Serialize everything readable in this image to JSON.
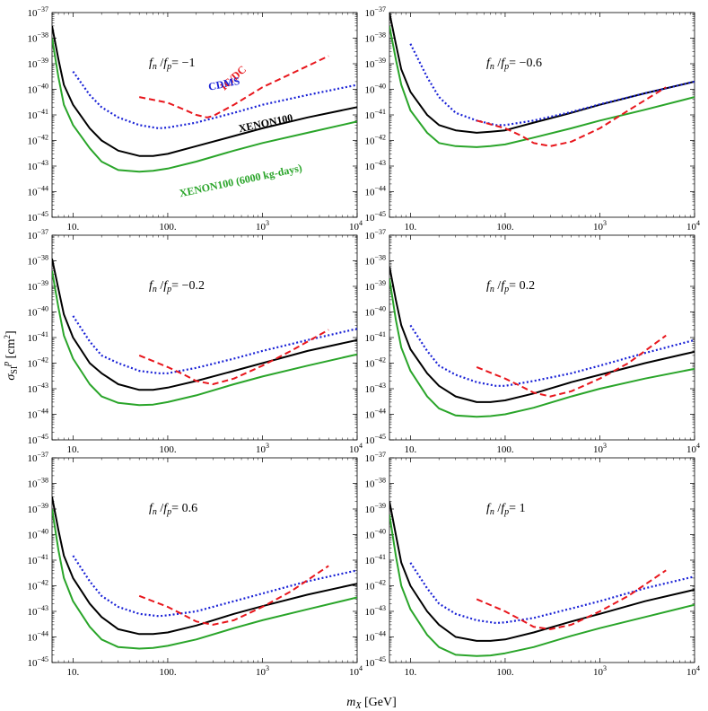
{
  "xlabel": "m_X [GeV]",
  "ylabel": "σ_SI^p [cm^2]",
  "colors": {
    "IC/DC": "#e8161c",
    "CDMS": "#1a22d6",
    "XENON100": "#000000",
    "XENON100 (6000 kg-days)": "#2aa52a"
  },
  "chart_data": [
    {
      "type": "line",
      "panel_label": "f_n / f_p = −1",
      "ratio": "−1",
      "xscale": "log",
      "yscale": "log",
      "xlim": [
        6,
        10000
      ],
      "ylim": [
        1e-45,
        1e-37
      ],
      "x_ticks": [
        "10.",
        "100.",
        "10^3",
        "10^4"
      ],
      "y_ticks": [
        "10^-45",
        "10^-44",
        "10^-43",
        "10^-42",
        "10^-41",
        "10^-40",
        "10^-39",
        "10^-38",
        "10^-37"
      ],
      "series": [
        {
          "name": "IC/DC",
          "label_shown": true,
          "x": [
            50,
            100,
            150,
            200,
            260,
            300,
            500,
            1000,
            2000,
            5000
          ],
          "y": [
            5e-41,
            3e-41,
            1.6e-41,
            1e-41,
            8e-42,
            9e-42,
            2.5e-41,
            1.2e-40,
            4e-40,
            2e-39
          ]
        },
        {
          "name": "CDMS",
          "label_shown": true,
          "x": [
            10,
            15,
            20,
            30,
            50,
            80,
            100,
            200,
            500,
            1000,
            3000,
            10000
          ],
          "y": [
            5e-40,
            6e-41,
            2e-41,
            8e-42,
            4e-42,
            3e-42,
            3.2e-42,
            5e-42,
            1.2e-41,
            2.5e-41,
            6e-41,
            1.5e-40
          ]
        },
        {
          "name": "XENON100",
          "label_shown": true,
          "x": [
            6,
            7,
            8,
            10,
            15,
            20,
            30,
            50,
            70,
            100,
            200,
            500,
            1000,
            3000,
            10000
          ],
          "y": [
            3e-38,
            1.5e-39,
            1.5e-40,
            2.5e-41,
            3e-42,
            1e-42,
            4e-43,
            2.5e-43,
            2.5e-43,
            3e-43,
            6e-43,
            1.5e-42,
            3e-42,
            8e-42,
            2e-41
          ]
        },
        {
          "name": "XENON100 (6000 kg-days)",
          "label_shown": true,
          "x": [
            6,
            7,
            8,
            10,
            15,
            20,
            30,
            50,
            70,
            100,
            200,
            500,
            1000,
            3000,
            10000
          ],
          "y": [
            1e-38,
            3e-40,
            2.5e-41,
            4e-42,
            5e-43,
            1.5e-43,
            7e-44,
            6e-44,
            6.5e-44,
            8e-44,
            1.5e-43,
            4e-43,
            8e-43,
            2e-42,
            5.5e-42
          ]
        }
      ]
    },
    {
      "type": "line",
      "panel_label": "f_n / f_p = −0.6",
      "ratio": "−0.6",
      "xscale": "log",
      "yscale": "log",
      "xlim": [
        6,
        10000
      ],
      "ylim": [
        1e-45,
        1e-37
      ],
      "x_ticks": [
        "10.",
        "100.",
        "10^3",
        "10^4"
      ],
      "y_ticks": [
        "10^-45",
        "10^-44",
        "10^-43",
        "10^-42",
        "10^-41",
        "10^-40",
        "10^-39",
        "10^-38",
        "10^-37"
      ],
      "series": [
        {
          "name": "IC/DC",
          "label_shown": false,
          "x": [
            50,
            100,
            150,
            200,
            300,
            500,
            1000,
            2000,
            5000
          ],
          "y": [
            6e-42,
            3e-42,
            1.5e-42,
            8e-43,
            6e-43,
            9e-43,
            3e-42,
            1.5e-41,
            1.2e-40
          ]
        },
        {
          "name": "CDMS",
          "label_shown": false,
          "x": [
            10,
            15,
            20,
            30,
            50,
            80,
            100,
            200,
            500,
            1000,
            3000,
            10000
          ],
          "y": [
            6e-39,
            3e-40,
            5e-41,
            1.2e-41,
            6e-42,
            4e-42,
            4e-42,
            6e-42,
            1.3e-41,
            2.6e-41,
            7e-41,
            2e-40
          ]
        },
        {
          "name": "XENON100",
          "label_shown": false,
          "x": [
            6,
            7,
            8,
            10,
            15,
            20,
            30,
            50,
            70,
            100,
            200,
            500,
            1000,
            3000,
            10000
          ],
          "y": [
            1e-37,
            6e-39,
            6e-40,
            8e-41,
            1e-41,
            4e-42,
            2.5e-42,
            2e-42,
            2.2e-42,
            2.5e-42,
            5e-42,
            1.2e-41,
            2.5e-41,
            7e-41,
            2e-40
          ]
        },
        {
          "name": "XENON100 (6000 kg-days)",
          "label_shown": false,
          "x": [
            6,
            7,
            8,
            10,
            15,
            20,
            30,
            50,
            70,
            100,
            200,
            500,
            1000,
            3000,
            10000
          ],
          "y": [
            3e-38,
            1.5e-39,
            1.5e-40,
            1.5e-41,
            2e-42,
            8e-43,
            6e-43,
            5.5e-43,
            6e-43,
            7e-43,
            1.3e-42,
            3e-42,
            6e-42,
            1.6e-41,
            5e-41
          ]
        }
      ]
    },
    {
      "type": "line",
      "panel_label": "f_n / f_p = −0.2",
      "ratio": "−0.2",
      "xscale": "log",
      "yscale": "log",
      "xlim": [
        6,
        10000
      ],
      "ylim": [
        1e-45,
        1e-37
      ],
      "x_ticks": [
        "10.",
        "100.",
        "10^3",
        "10^4"
      ],
      "y_ticks": [
        "10^-45",
        "10^-44",
        "10^-43",
        "10^-42",
        "10^-41",
        "10^-40",
        "10^-39",
        "10^-38",
        "10^-37"
      ],
      "series": [
        {
          "name": "IC/DC",
          "label_shown": false,
          "x": [
            50,
            100,
            150,
            200,
            300,
            500,
            1000,
            2000,
            5000
          ],
          "y": [
            2e-42,
            7e-43,
            3.5e-43,
            2e-43,
            1.5e-43,
            2.5e-43,
            8e-43,
            3e-42,
            2e-41
          ]
        },
        {
          "name": "CDMS",
          "label_shown": false,
          "x": [
            10,
            15,
            20,
            30,
            50,
            80,
            100,
            200,
            500,
            1000,
            3000,
            10000
          ],
          "y": [
            7e-41,
            7e-42,
            2e-42,
            1e-42,
            5e-43,
            4e-43,
            4e-43,
            6.5e-43,
            1.5e-42,
            3e-42,
            8e-42,
            2.2e-41
          ]
        },
        {
          "name": "XENON100",
          "label_shown": false,
          "x": [
            6,
            7,
            8,
            10,
            15,
            20,
            30,
            50,
            70,
            100,
            200,
            500,
            1000,
            3000,
            10000
          ],
          "y": [
            1.2e-38,
            8e-40,
            8e-41,
            1e-41,
            1e-42,
            4e-43,
            1.5e-43,
            9e-44,
            9e-44,
            1.1e-43,
            2e-43,
            5e-43,
            1e-42,
            3e-42,
            8e-42
          ]
        },
        {
          "name": "XENON100 (6000 kg-days)",
          "label_shown": false,
          "x": [
            6,
            7,
            8,
            10,
            15,
            20,
            30,
            50,
            70,
            100,
            200,
            500,
            1000,
            3000,
            10000
          ],
          "y": [
            4e-39,
            1.5e-40,
            1.2e-41,
            1.5e-42,
            1.5e-43,
            5e-44,
            2.8e-44,
            2.3e-44,
            2.4e-44,
            3e-44,
            5.5e-44,
            1.5e-43,
            3e-43,
            8e-43,
            2.2e-42
          ]
        }
      ]
    },
    {
      "type": "line",
      "panel_label": "f_n / f_p = 0.2",
      "ratio": "0.2",
      "xscale": "log",
      "yscale": "log",
      "xlim": [
        6,
        10000
      ],
      "ylim": [
        1e-45,
        1e-37
      ],
      "x_ticks": [
        "10.",
        "100.",
        "10^3",
        "10^4"
      ],
      "y_ticks": [
        "10^-45",
        "10^-44",
        "10^-43",
        "10^-42",
        "10^-41",
        "10^-40",
        "10^-39",
        "10^-38",
        "10^-37"
      ],
      "series": [
        {
          "name": "IC/DC",
          "label_shown": false,
          "x": [
            50,
            100,
            150,
            200,
            300,
            500,
            1000,
            2000,
            5000
          ],
          "y": [
            7e-43,
            2.5e-43,
            1.2e-43,
            7e-44,
            5e-44,
            8e-44,
            2.5e-43,
            1e-42,
            1.2e-41
          ]
        },
        {
          "name": "CDMS",
          "label_shown": false,
          "x": [
            10,
            15,
            20,
            30,
            50,
            80,
            100,
            200,
            500,
            1000,
            3000,
            10000
          ],
          "y": [
            3e-41,
            3e-42,
            8e-43,
            3.5e-43,
            1.8e-43,
            1.3e-43,
            1.3e-43,
            2e-43,
            4e-43,
            8e-43,
            2.5e-42,
            8e-42
          ]
        },
        {
          "name": "XENON100",
          "label_shown": false,
          "x": [
            6,
            7,
            8,
            10,
            15,
            20,
            30,
            50,
            70,
            100,
            200,
            500,
            1000,
            3000,
            10000
          ],
          "y": [
            6e-39,
            3e-40,
            3e-41,
            3.5e-42,
            4e-43,
            1.3e-43,
            5e-44,
            3e-44,
            3e-44,
            3.5e-44,
            6.5e-44,
            1.8e-43,
            3.5e-43,
            1e-42,
            2.8e-42
          ]
        },
        {
          "name": "XENON100 (6000 kg-days)",
          "label_shown": false,
          "x": [
            6,
            7,
            8,
            10,
            15,
            20,
            30,
            50,
            70,
            100,
            200,
            500,
            1000,
            3000,
            10000
          ],
          "y": [
            2e-39,
            5e-41,
            4e-42,
            5e-43,
            5e-44,
            1.7e-44,
            9e-45,
            8e-45,
            8.5e-45,
            1e-44,
            1.8e-44,
            5e-44,
            1e-43,
            2.5e-43,
            6e-43
          ]
        }
      ]
    },
    {
      "type": "line",
      "panel_label": "f_n / f_p = 0.6",
      "ratio": "0.6",
      "xscale": "log",
      "yscale": "log",
      "xlim": [
        6,
        10000
      ],
      "ylim": [
        1e-45,
        1e-37
      ],
      "x_ticks": [
        "10.",
        "100.",
        "10^3",
        "10^4"
      ],
      "y_ticks": [
        "10^-45",
        "10^-44",
        "10^-43",
        "10^-42",
        "10^-41",
        "10^-40",
        "10^-39",
        "10^-38",
        "10^-37"
      ],
      "series": [
        {
          "name": "IC/DC",
          "label_shown": false,
          "x": [
            50,
            100,
            150,
            200,
            300,
            500,
            1000,
            2000,
            5000
          ],
          "y": [
            4e-43,
            1.5e-43,
            7e-44,
            4e-44,
            3e-44,
            4.5e-44,
            1.5e-43,
            6e-43,
            6e-42
          ]
        },
        {
          "name": "CDMS",
          "label_shown": false,
          "x": [
            10,
            15,
            20,
            30,
            50,
            80,
            100,
            200,
            500,
            1000,
            3000,
            10000
          ],
          "y": [
            1.5e-41,
            1.5e-42,
            4e-43,
            1.5e-43,
            8e-44,
            6.5e-44,
            7e-44,
            1e-43,
            2.5e-43,
            5e-43,
            1.5e-42,
            4e-42
          ]
        },
        {
          "name": "XENON100",
          "label_shown": false,
          "x": [
            6,
            7,
            8,
            10,
            15,
            20,
            30,
            50,
            70,
            100,
            200,
            500,
            1000,
            3000,
            10000
          ],
          "y": [
            3e-39,
            1.5e-40,
            1.5e-41,
            2e-42,
            2e-43,
            6e-44,
            2e-44,
            1.3e-44,
            1.3e-44,
            1.5e-44,
            2.8e-44,
            8e-44,
            1.6e-43,
            4.5e-43,
            1.2e-42
          ]
        },
        {
          "name": "XENON100 (6000 kg-days)",
          "label_shown": false,
          "x": [
            6,
            7,
            8,
            10,
            15,
            20,
            30,
            50,
            70,
            100,
            200,
            500,
            1000,
            3000,
            10000
          ],
          "y": [
            1e-39,
            2.5e-41,
            2e-42,
            2.5e-43,
            2.5e-44,
            8e-45,
            4e-45,
            3.5e-45,
            3.7e-45,
            4.5e-45,
            8e-45,
            2.2e-44,
            4.5e-44,
            1.2e-43,
            3.5e-43
          ]
        }
      ]
    },
    {
      "type": "line",
      "panel_label": "f_n / f_p = 1",
      "ratio": "1",
      "xscale": "log",
      "yscale": "log",
      "xlim": [
        6,
        10000
      ],
      "ylim": [
        1e-45,
        1e-37
      ],
      "x_ticks": [
        "10.",
        "100.",
        "10^3",
        "10^4"
      ],
      "y_ticks": [
        "10^-45",
        "10^-44",
        "10^-43",
        "10^-42",
        "10^-41",
        "10^-40",
        "10^-39",
        "10^-38",
        "10^-37"
      ],
      "series": [
        {
          "name": "IC/DC",
          "label_shown": false,
          "x": [
            50,
            100,
            150,
            200,
            300,
            500,
            1000,
            2000,
            5000
          ],
          "y": [
            3e-43,
            1e-43,
            4.5e-44,
            2.5e-44,
            2e-44,
            3e-44,
            1e-43,
            4e-43,
            4e-42
          ]
        },
        {
          "name": "CDMS",
          "label_shown": false,
          "x": [
            10,
            15,
            20,
            30,
            50,
            80,
            100,
            200,
            500,
            1000,
            3000,
            10000
          ],
          "y": [
            8e-42,
            8e-43,
            2e-43,
            8e-44,
            4.5e-44,
            3.5e-44,
            3.7e-44,
            5.5e-44,
            1.3e-43,
            2.5e-43,
            8e-43,
            2.3e-42
          ]
        },
        {
          "name": "XENON100",
          "label_shown": false,
          "x": [
            6,
            7,
            8,
            10,
            15,
            20,
            30,
            50,
            70,
            100,
            200,
            500,
            1000,
            3000,
            10000
          ],
          "y": [
            2e-39,
            1e-40,
            8e-42,
            1e-42,
            1e-43,
            3e-44,
            1e-44,
            7e-45,
            7e-45,
            8e-45,
            1.5e-44,
            4e-44,
            8e-44,
            2.5e-43,
            7e-43
          ]
        },
        {
          "name": "XENON100 (6000 kg-days)",
          "label_shown": false,
          "x": [
            6,
            7,
            8,
            10,
            15,
            20,
            30,
            50,
            70,
            100,
            200,
            500,
            1000,
            3000,
            10000
          ],
          "y": [
            6e-40,
            1.5e-41,
            1e-42,
            1.2e-43,
            1.2e-44,
            4e-45,
            2e-45,
            1.8e-45,
            1.9e-45,
            2.3e-45,
            4e-45,
            1.1e-44,
            2.2e-44,
            6e-44,
            1.8e-43
          ]
        }
      ]
    }
  ]
}
